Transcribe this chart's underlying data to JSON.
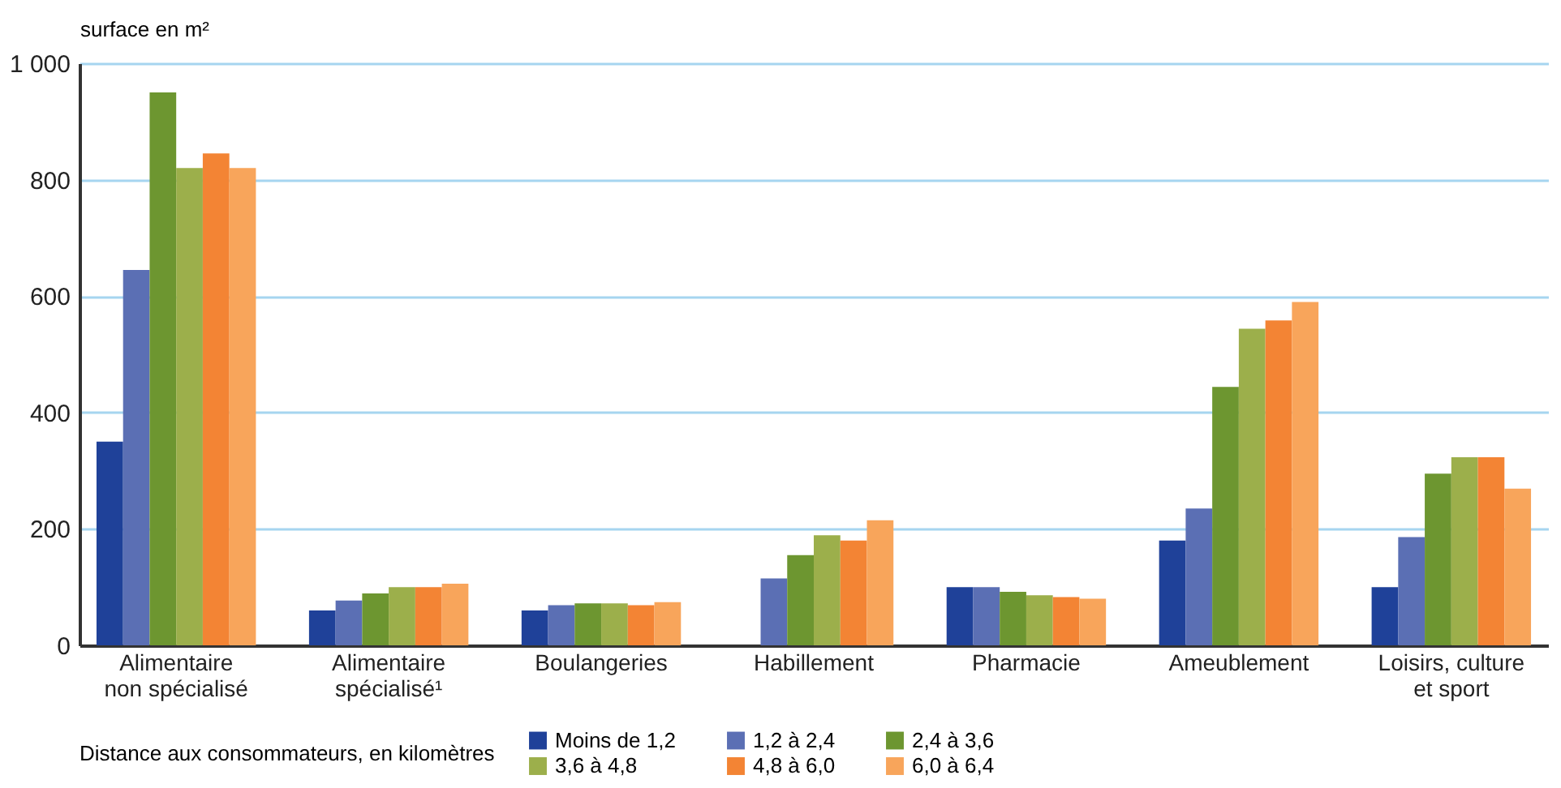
{
  "chart_data": {
    "type": "bar",
    "ylabel": "surface en m²",
    "legend_title": "Distance aux consommateurs, en kilomètres",
    "categories": [
      "Alimentaire\nnon spécialisé",
      "Alimentaire\nspécialisé¹",
      "Boulangeries",
      "Habillement",
      "Pharmacie",
      "Ameublement",
      "Loisirs, culture\net sport"
    ],
    "series": [
      {
        "name": "Moins de 1,2",
        "color": "#1f4199",
        "values": [
          350,
          60,
          60,
          null,
          100,
          180,
          100
        ]
      },
      {
        "name": "1,2 à 2,4",
        "color": "#5b6fb4",
        "values": [
          645,
          77,
          69,
          115,
          100,
          235,
          186
        ]
      },
      {
        "name": "2,4 à 3,6",
        "color": "#6d9630",
        "values": [
          950,
          89,
          72,
          155,
          92,
          444,
          295
        ]
      },
      {
        "name": "3,6 à 4,8",
        "color": "#9caf4b",
        "values": [
          820,
          100,
          72,
          189,
          86,
          544,
          323
        ]
      },
      {
        "name": "4,8 à 6,0",
        "color": "#f38434",
        "values": [
          845,
          100,
          69,
          180,
          83,
          558,
          323
        ]
      },
      {
        "name": "6,0 à 6,4",
        "color": "#f8a55b",
        "values": [
          820,
          106,
          74,
          215,
          80,
          590,
          269
        ]
      }
    ],
    "ylim": [
      0,
      1000
    ],
    "yticks": [
      0,
      200,
      400,
      600,
      800,
      {
        "value": 1000,
        "label": "1 000"
      }
    ],
    "grid": "y",
    "legend": "bottom"
  }
}
